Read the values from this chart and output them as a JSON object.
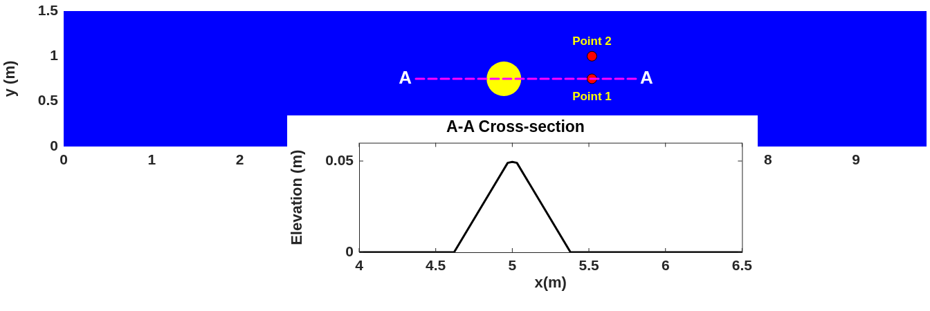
{
  "chart_data": [
    {
      "type": "scatter",
      "ylabel": "y (m)",
      "xlim": [
        0,
        9.8
      ],
      "ylim": [
        0,
        1.5
      ],
      "xticks": [
        0,
        1,
        2,
        8,
        9
      ],
      "yticks": [
        0,
        0.5,
        1,
        1.5
      ],
      "grid": false,
      "bands": [
        {
          "axis": "x",
          "from": 0,
          "to": 9.8,
          "color": "#0000ff"
        }
      ],
      "series": [
        {
          "type": "line",
          "x": [
            4,
            6.5
          ],
          "values": [
            0.75,
            0.75
          ],
          "color": "#ff00ff",
          "line_style": "dashed",
          "marker": "none"
        },
        {
          "type": "bubble",
          "x": [
            5
          ],
          "values": [
            0.75
          ],
          "sizes": [
            1
          ],
          "color": "#ffff00"
        },
        {
          "type": "scatter",
          "x": [
            6,
            6
          ],
          "values": [
            0.75,
            1
          ],
          "color": "#ff0000",
          "marker": "circle"
        }
      ],
      "annotations": [
        {
          "text": "A",
          "x": 4,
          "y": 0.75
        },
        {
          "text": "A",
          "x": 6.5,
          "y": 0.75
        },
        {
          "text": "Point 1",
          "x": 6,
          "y": 0.75
        },
        {
          "text": "Point 2",
          "x": 6,
          "y": 1
        }
      ]
    },
    {
      "type": "line",
      "title": "A-A Cross-section",
      "xlabel": "x(m)",
      "ylabel": "Elevation (m)",
      "xlim": [
        4,
        6.5
      ],
      "ylim": [
        0,
        0.06
      ],
      "xticks": [
        4,
        4.5,
        5,
        5.5,
        6,
        6.5
      ],
      "yticks": [
        0,
        0.05
      ],
      "grid": false,
      "marker": "none",
      "series": [
        {
          "x": [
            4,
            4.62,
            4.97,
            5.0,
            5.03,
            5.38,
            6.5
          ],
          "values": [
            0,
            0,
            0.049,
            0.0495,
            0.049,
            0,
            0
          ],
          "color": "#000000"
        }
      ]
    }
  ]
}
